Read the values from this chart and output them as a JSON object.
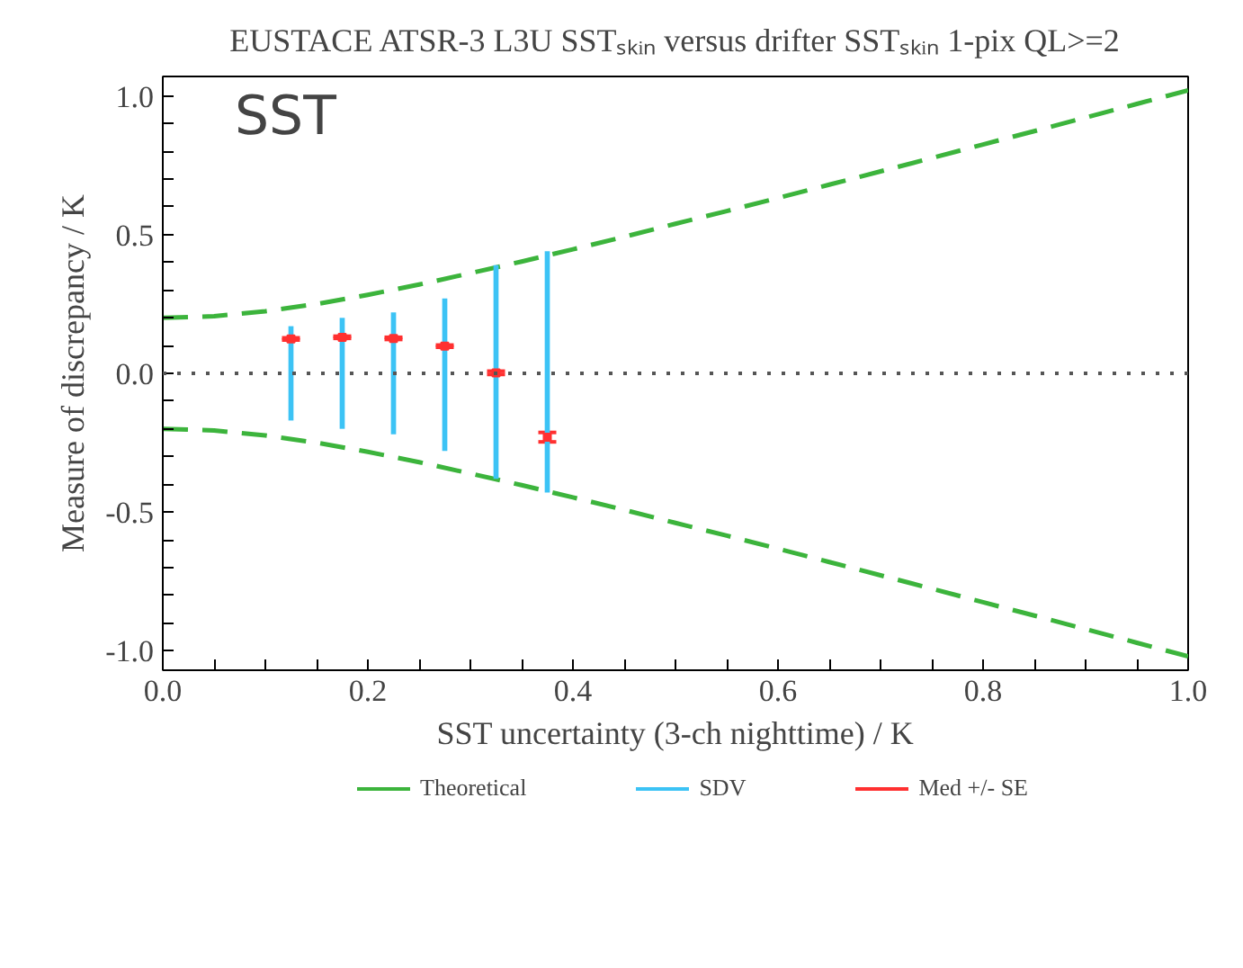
{
  "chart_data": {
    "type": "line",
    "title": "EUSTACE ATSR-3 L3U SSTₛₖᵢₙ versus drifter SSTₛₖᵢₙ 1-pix QL>=2",
    "xlabel": "SST uncertainty (3-ch nighttime) / K",
    "ylabel": "Measure of discrepancy / K",
    "annotations": [
      "SST"
    ],
    "xlim": [
      0,
      1.0
    ],
    "ylim": [
      -1.07,
      1.07
    ],
    "xticks": [
      {
        "value": 0,
        "label": "0.0"
      },
      {
        "value": 0.05,
        "label": null
      },
      {
        "value": 0.1,
        "label": null
      },
      {
        "value": 0.15,
        "label": null
      },
      {
        "value": 0.2,
        "label": "0.2"
      },
      {
        "value": 0.25,
        "label": null
      },
      {
        "value": 0.3,
        "label": null
      },
      {
        "value": 0.35,
        "label": null
      },
      {
        "value": 0.4,
        "label": "0.4"
      },
      {
        "value": 0.45,
        "label": null
      },
      {
        "value": 0.5,
        "label": null
      },
      {
        "value": 0.55,
        "label": null
      },
      {
        "value": 0.6,
        "label": "0.6"
      },
      {
        "value": 0.65,
        "label": null
      },
      {
        "value": 0.7,
        "label": null
      },
      {
        "value": 0.75,
        "label": null
      },
      {
        "value": 0.8,
        "label": "0.8"
      },
      {
        "value": 0.85,
        "label": null
      },
      {
        "value": 0.9,
        "label": null
      },
      {
        "value": 0.95,
        "label": null
      },
      {
        "value": 1.0,
        "label": "1.0"
      }
    ],
    "yticks": [
      {
        "value": -1.0,
        "label": "-1.0"
      },
      {
        "value": -0.9,
        "label": null
      },
      {
        "value": -0.8,
        "label": null
      },
      {
        "value": -0.7,
        "label": null
      },
      {
        "value": -0.6,
        "label": null
      },
      {
        "value": -0.5,
        "label": "-0.5"
      },
      {
        "value": -0.4,
        "label": null
      },
      {
        "value": -0.3,
        "label": null
      },
      {
        "value": -0.2,
        "label": null
      },
      {
        "value": -0.1,
        "label": null
      },
      {
        "value": 0,
        "label": "0.0"
      },
      {
        "value": 0.1,
        "label": null
      },
      {
        "value": 0.2,
        "label": null
      },
      {
        "value": 0.3,
        "label": null
      },
      {
        "value": 0.4,
        "label": null
      },
      {
        "value": 0.5,
        "label": "0.5"
      },
      {
        "value": 0.6,
        "label": null
      },
      {
        "value": 0.7,
        "label": null
      },
      {
        "value": 0.8,
        "label": null
      },
      {
        "value": 0.9,
        "label": null
      },
      {
        "value": 1.0,
        "label": "1.0"
      }
    ],
    "grid": false,
    "legend": "bottom",
    "ref_lines": [
      {
        "axis": "y",
        "value": 0,
        "color": "#555555",
        "line_style": "dotted"
      }
    ],
    "series": [
      {
        "name": "Theoretical",
        "line_style": "dashed",
        "color": "#3cb43c",
        "x": [
          0,
          0.05,
          0.1,
          0.15,
          0.2,
          0.25,
          0.3,
          0.35,
          0.4,
          0.45,
          0.5,
          0.55,
          0.6,
          0.65,
          0.7,
          0.75,
          0.8,
          0.85,
          0.9,
          0.95,
          1.0
        ],
        "values": [
          0.2,
          0.206,
          0.224,
          0.25,
          0.283,
          0.32,
          0.361,
          0.403,
          0.447,
          0.492,
          0.539,
          0.585,
          0.632,
          0.68,
          0.728,
          0.776,
          0.825,
          0.873,
          0.922,
          0.971,
          1.02
        ]
      },
      {
        "line_style": "dashed",
        "color": "#3cb43c",
        "x": [
          0,
          0.05,
          0.1,
          0.15,
          0.2,
          0.25,
          0.3,
          0.35,
          0.4,
          0.45,
          0.5,
          0.55,
          0.6,
          0.65,
          0.7,
          0.75,
          0.8,
          0.85,
          0.9,
          0.95,
          1.0
        ],
        "values": [
          -0.2,
          -0.206,
          -0.224,
          -0.25,
          -0.283,
          -0.32,
          -0.361,
          -0.403,
          -0.447,
          -0.492,
          -0.539,
          -0.585,
          -0.632,
          -0.68,
          -0.728,
          -0.776,
          -0.825,
          -0.873,
          -0.922,
          -0.971,
          -1.02
        ]
      },
      {
        "name": "SDV",
        "type": "bar",
        "color": "#3cc3f5",
        "x": [
          0.125,
          0.175,
          0.225,
          0.275,
          0.325,
          0.375
        ],
        "base": [
          -0.17,
          -0.2,
          -0.22,
          -0.28,
          -0.38,
          -0.43
        ],
        "values": [
          0.34,
          0.4,
          0.44,
          0.55,
          0.77,
          0.87
        ]
      },
      {
        "name": "Med +/- SE",
        "type": "scatter",
        "marker": "square",
        "color": "#ff3030",
        "x": [
          0.125,
          0.175,
          0.225,
          0.275,
          0.325,
          0.375
        ],
        "values": [
          0.124,
          0.13,
          0.126,
          0.098,
          0.002,
          -0.23
        ],
        "errors": [
          0.004,
          0.004,
          0.004,
          0.004,
          0.006,
          0.017
        ]
      }
    ]
  }
}
